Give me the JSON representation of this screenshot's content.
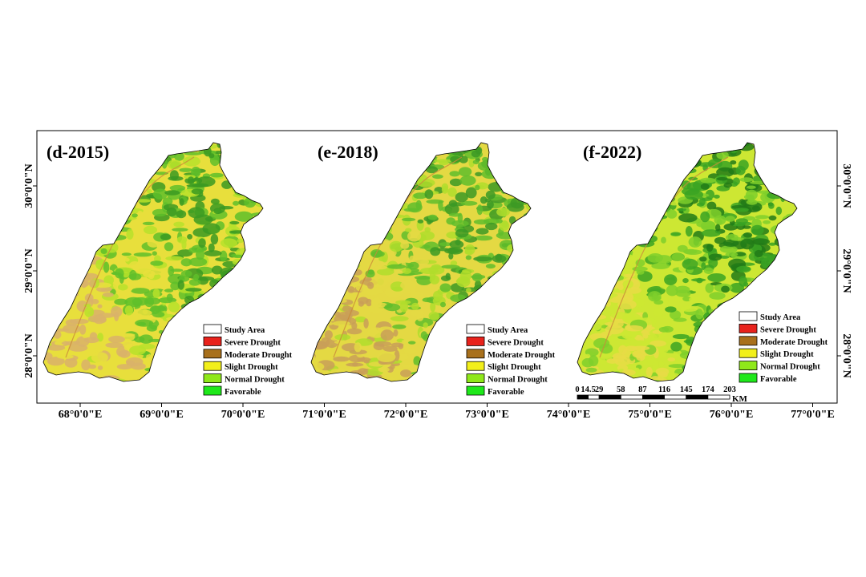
{
  "panels": [
    {
      "label": "(d-2015)",
      "palette": [
        "#d9b26a",
        "#e8df3c",
        "#b7e22a",
        "#5fbf2a",
        "#3b9a22"
      ],
      "legend": [
        "Study Area",
        "Severe Drought",
        "Moderate Drought",
        "Slight Drought",
        "Normal Drought",
        "Favorable"
      ]
    },
    {
      "label": "(e-2018)",
      "palette": [
        "#c99f58",
        "#e4d943",
        "#b0dd2b",
        "#60bd2b",
        "#3c9924"
      ],
      "legend": [
        "Study Area",
        "Severe Drought",
        "Moderate Drought",
        "Slight Drought",
        "Normal Drought",
        "Favorable"
      ]
    },
    {
      "label": "(f-2022)",
      "palette": [
        "#e8dc45",
        "#cde733",
        "#7fcf2c",
        "#3aa323",
        "#217a17"
      ],
      "legend": [
        "Study Area",
        "Severe Drought",
        "Moderate Drought",
        "Slight Drought",
        "Normal Drought",
        "Favorable"
      ]
    }
  ],
  "legend_colors": [
    "#ffffff",
    "#e8221c",
    "#a8701c",
    "#f2ef1a",
    "#8fe81a",
    "#1ee81a"
  ],
  "x_axis_ticks": [
    "68°0'0\"E",
    "69°0'0\"E",
    "70°0'0\"E",
    "71°0'0\"E",
    "72°0'0\"E",
    "73°0'0\"E",
    "74°0'0\"E",
    "75°0'0\"E",
    "76°0'0\"E",
    "77°0'0\"E"
  ],
  "y_axis_ticks": [
    "30°0'0\"N",
    "29°0'0\"N",
    "28°0'0\"N"
  ],
  "scale_bar": {
    "labels": [
      "0",
      "14.5",
      "29",
      "58",
      "87",
      "116",
      "145",
      "174",
      "203"
    ],
    "unit": "KM"
  }
}
